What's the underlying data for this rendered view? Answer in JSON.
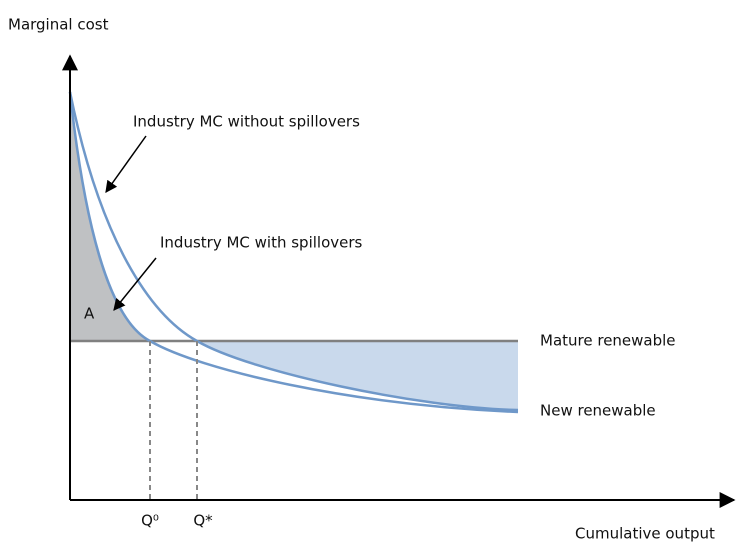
{
  "y_axis_label": "Marginal cost",
  "x_axis_label": "Cumulative output",
  "curves": {
    "without_spillovers": "Industry MC without spillovers",
    "with_spillovers": "Industry MC with spillovers"
  },
  "area_label": "A",
  "lines": {
    "mature": "Mature renewable",
    "new": "New renewable"
  },
  "quantities": {
    "q0": "Q⁰",
    "qstar": "Q*"
  }
}
